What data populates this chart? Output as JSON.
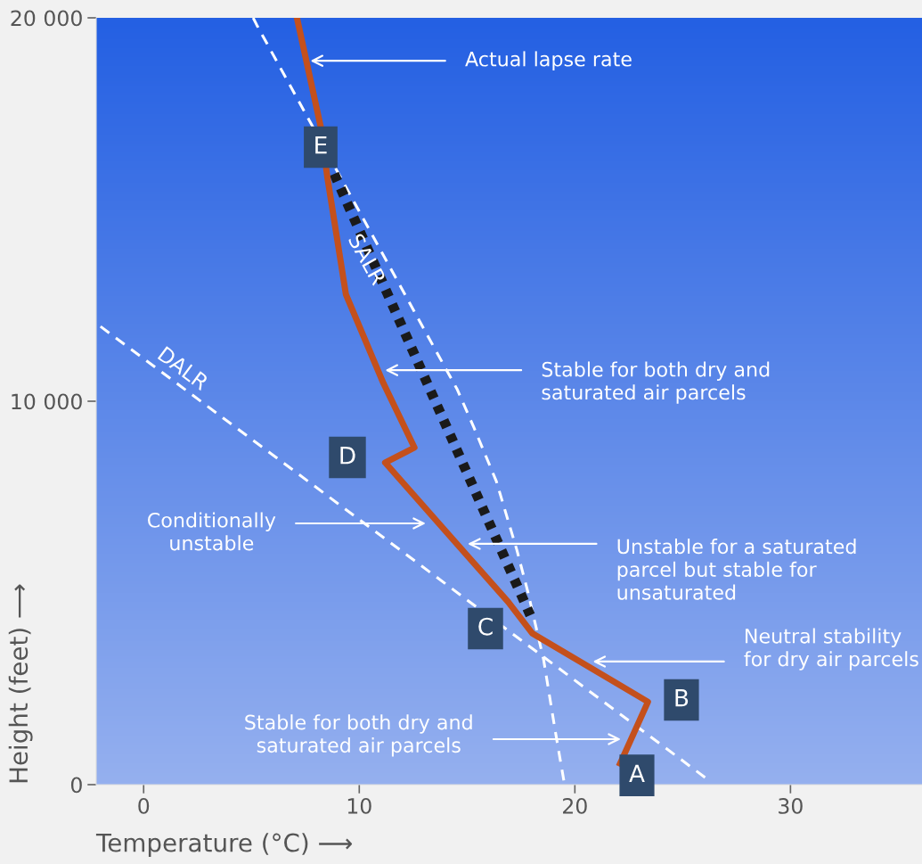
{
  "chart_data": {
    "type": "line",
    "xlabel": "Temperature (°C) ⟶",
    "ylabel": "Height (feet) ⟶",
    "xlim": [
      -2.2,
      36.1
    ],
    "ylim": [
      0,
      20000
    ],
    "xticks": [
      0,
      10,
      20,
      30
    ],
    "yticks": [
      0,
      {
        "value": 10000,
        "label": "10 000"
      },
      {
        "value": 20000,
        "label": "20 000"
      }
    ],
    "grid": false,
    "series": [
      {
        "color": "#c4501c",
        "line_style": "solid",
        "x": [
          7.11,
          8.22,
          8.51,
          9.38,
          11.12,
          12.56,
          11.2,
          16.9,
          18.02,
          23.39,
          22.1
        ],
        "values": [
          20000,
          17140,
          15880,
          12790,
          10470,
          8790,
          8400,
          4770,
          3950,
          2160,
          550
        ]
      },
      {
        "name": "DALR",
        "color": "#ffffff",
        "line_style": "dashed",
        "x": [
          -2.0,
          26.2
        ],
        "values": [
          11950,
          120
        ]
      },
      {
        "name": "SALR",
        "color": "#ffffff",
        "line_style": "dashed",
        "x": [
          5.08,
          5.25,
          14.55,
          15.33,
          16.36,
          17.31,
          17.81,
          18.55,
          19.09,
          19.5
        ],
        "values": [
          20000,
          19810,
          10300,
          9300,
          7910,
          6120,
          5050,
          3260,
          1400,
          70
        ]
      },
      {
        "color": "#1a1a1a",
        "line_style": "dotted",
        "x": [
          8.84,
          17.93
        ],
        "values": [
          15930,
          4420
        ]
      }
    ],
    "annotations": [
      {
        "text": "Actual lapse rate",
        "x": 7.73,
        "y": 18880
      },
      {
        "text": "Stable for both dry and\nsaturated air parcels",
        "x": 11.2,
        "y": 10810
      },
      "Conditionally\nunstable",
      "Unstable for a saturated\nparcel but stable for\nunsaturated",
      {
        "text": "Neutral stability\nfor dry air parcels",
        "x": 20.83,
        "y": 3210
      },
      "Stable for both dry and\nsaturated air parcels",
      "A",
      "B",
      "C",
      "D",
      "E"
    ]
  }
}
